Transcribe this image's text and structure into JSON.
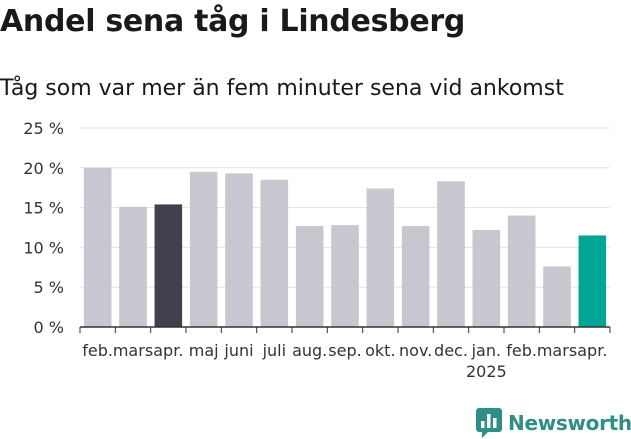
{
  "chart_data": {
    "type": "bar",
    "title": "Andel sena tåg i Lindesberg",
    "subtitle": "Tåg som var mer än fem minuter sena vid ankomst",
    "categories": [
      "feb.",
      "mars",
      "apr.",
      "maj",
      "juni",
      "juli",
      "aug.",
      "sep.",
      "okt.",
      "nov.",
      "dec.",
      "jan.",
      "feb.",
      "mars",
      "apr."
    ],
    "year_label": {
      "text": "2025",
      "category_index": 11
    },
    "values": [
      20,
      15.1,
      15.4,
      19.5,
      19.3,
      18.5,
      12.7,
      12.8,
      17.4,
      12.7,
      18.3,
      12.2,
      14,
      7.6,
      11.5
    ],
    "y_ticks": [
      0,
      5,
      10,
      15,
      20,
      25
    ],
    "y_tick_labels": [
      "0 %",
      "5 %",
      "10 %",
      "15 %",
      "20 %",
      "25 %"
    ],
    "ylim": [
      0,
      25
    ],
    "xlabel": "",
    "ylabel": "",
    "grid": true,
    "colors": {
      "default": "#c8c6ce",
      "highlight_previous": "#42404d",
      "highlight_latest": "#00a596",
      "grid": "#e3e3e3",
      "axis": "#333333"
    },
    "highlight": {
      "2": "highlight_previous",
      "14": "highlight_latest"
    }
  },
  "brand": {
    "name": "Newsworthy",
    "icon": "bar-chart-logo-icon",
    "color": "#2f8f86"
  }
}
